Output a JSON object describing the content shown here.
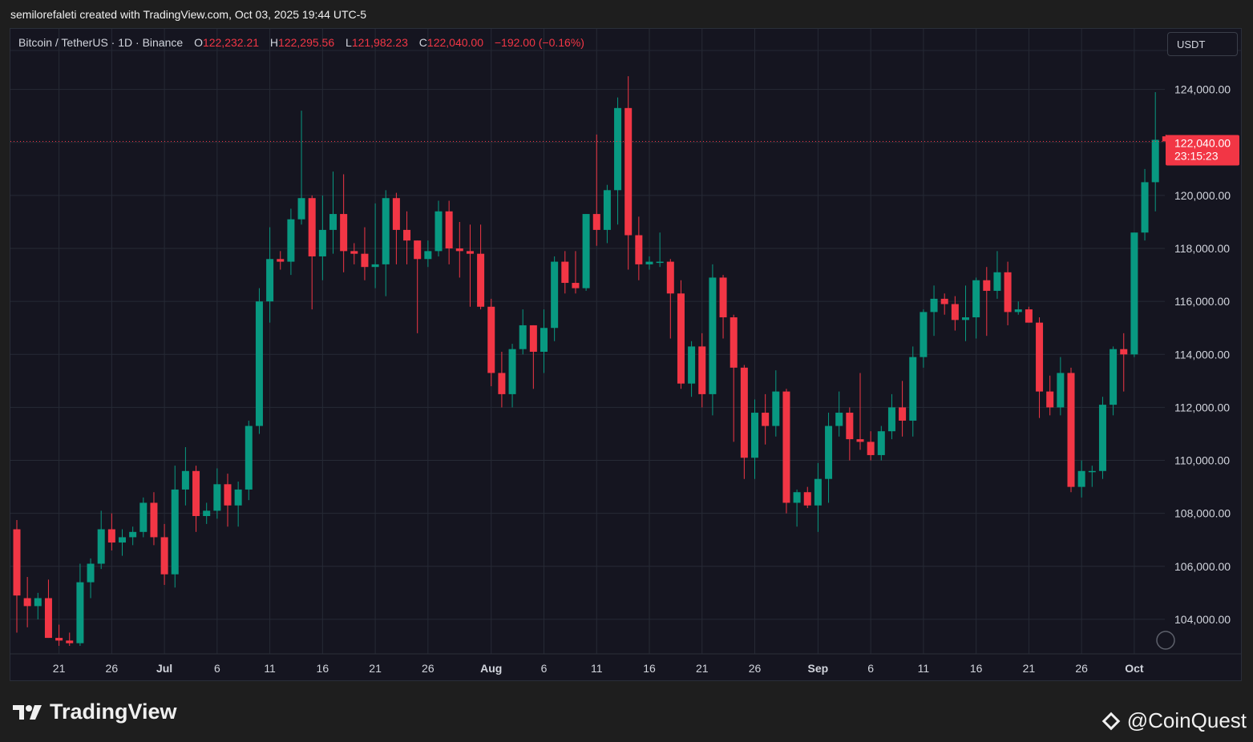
{
  "header": {
    "credit": "semilorefaleti created with TradingView.com, Oct 03, 2025 19:44 UTC-5"
  },
  "legend": {
    "symbol": "Bitcoin / TetherUS · 1D · Binance",
    "open_label": "O",
    "open": "122,232.21",
    "high_label": "H",
    "high": "122,295.56",
    "low_label": "L",
    "low": "121,982.23",
    "close_label": "C",
    "close": "122,040.00",
    "change": "−192.00 (−0.16%)"
  },
  "currency_button": "USDT",
  "price_tag": {
    "price": "122,040.00",
    "countdown": "23:15:23",
    "value": 122040
  },
  "footer": {
    "brand": "TradingView",
    "watermark": "@CoinQuest"
  },
  "colors": {
    "up": "#089981",
    "down": "#f23645",
    "background": "#151520",
    "grid": "#262a35"
  },
  "chart_data": {
    "type": "candlestick",
    "ylim": [
      103000,
      125200
    ],
    "y_ticks": [
      104000,
      106000,
      108000,
      110000,
      112000,
      114000,
      116000,
      118000,
      120000,
      122000,
      124000
    ],
    "y_tick_labels": [
      "104,000.00",
      "106,000.00",
      "108,000.00",
      "110,000.00",
      "112,000.00",
      "114,000.00",
      "116,000.00",
      "118,000.00",
      "120,000.00",
      "",
      "124,000.00"
    ],
    "x_tick_labels": [
      "21",
      "26",
      "Jul",
      "6",
      "11",
      "16",
      "21",
      "26",
      "Aug",
      "6",
      "11",
      "16",
      "21",
      "26",
      "Sep",
      "6",
      "11",
      "16",
      "21",
      "26",
      "Oct"
    ],
    "x_tick_dates": [
      "2025-06-21",
      "2025-06-26",
      "2025-07-01",
      "2025-07-06",
      "2025-07-11",
      "2025-07-16",
      "2025-07-21",
      "2025-07-26",
      "2025-08-01",
      "2025-08-06",
      "2025-08-11",
      "2025-08-16",
      "2025-08-21",
      "2025-08-26",
      "2025-09-01",
      "2025-09-06",
      "2025-09-11",
      "2025-09-16",
      "2025-09-21",
      "2025-09-26",
      "2025-10-01"
    ],
    "x_tick_bold": [
      "Jul",
      "Aug",
      "Sep",
      "Oct"
    ],
    "start_date": "2025-06-17",
    "candles": [
      {
        "date": "2025-06-17",
        "o": 107400,
        "h": 107750,
        "l": 103500,
        "c": 104900
      },
      {
        "date": "2025-06-18",
        "o": 104800,
        "h": 105600,
        "l": 103700,
        "c": 104500
      },
      {
        "date": "2025-06-19",
        "o": 104500,
        "h": 105000,
        "l": 104000,
        "c": 104800
      },
      {
        "date": "2025-06-20",
        "o": 104800,
        "h": 105500,
        "l": 103300,
        "c": 103300
      },
      {
        "date": "2025-06-21",
        "o": 103300,
        "h": 103800,
        "l": 103000,
        "c": 103200
      },
      {
        "date": "2025-06-22",
        "o": 103200,
        "h": 103500,
        "l": 103000,
        "c": 103100
      },
      {
        "date": "2025-06-23",
        "o": 103100,
        "h": 106100,
        "l": 103000,
        "c": 105400
      },
      {
        "date": "2025-06-24",
        "o": 105400,
        "h": 106300,
        "l": 104800,
        "c": 106100
      },
      {
        "date": "2025-06-25",
        "o": 106100,
        "h": 108100,
        "l": 105900,
        "c": 107400
      },
      {
        "date": "2025-06-26",
        "o": 107400,
        "h": 108000,
        "l": 106600,
        "c": 106900
      },
      {
        "date": "2025-06-27",
        "o": 106900,
        "h": 107400,
        "l": 106400,
        "c": 107100
      },
      {
        "date": "2025-06-28",
        "o": 107100,
        "h": 107500,
        "l": 106800,
        "c": 107300
      },
      {
        "date": "2025-06-29",
        "o": 107300,
        "h": 108600,
        "l": 107100,
        "c": 108400
      },
      {
        "date": "2025-06-30",
        "o": 108400,
        "h": 108800,
        "l": 106800,
        "c": 107100
      },
      {
        "date": "2025-07-01",
        "o": 107100,
        "h": 107600,
        "l": 105300,
        "c": 105700
      },
      {
        "date": "2025-07-02",
        "o": 105700,
        "h": 109800,
        "l": 105200,
        "c": 108900
      },
      {
        "date": "2025-07-03",
        "o": 108900,
        "h": 110500,
        "l": 108300,
        "c": 109600
      },
      {
        "date": "2025-07-04",
        "o": 109600,
        "h": 109800,
        "l": 107300,
        "c": 107900
      },
      {
        "date": "2025-07-05",
        "o": 107900,
        "h": 108400,
        "l": 107600,
        "c": 108100
      },
      {
        "date": "2025-07-06",
        "o": 108100,
        "h": 109700,
        "l": 107800,
        "c": 109100
      },
      {
        "date": "2025-07-07",
        "o": 109100,
        "h": 109500,
        "l": 107500,
        "c": 108300
      },
      {
        "date": "2025-07-08",
        "o": 108300,
        "h": 109200,
        "l": 107500,
        "c": 108900
      },
      {
        "date": "2025-07-09",
        "o": 108900,
        "h": 111500,
        "l": 108500,
        "c": 111300
      },
      {
        "date": "2025-07-10",
        "o": 111300,
        "h": 116500,
        "l": 111000,
        "c": 116000
      },
      {
        "date": "2025-07-11",
        "o": 116000,
        "h": 118800,
        "l": 115200,
        "c": 117600
      },
      {
        "date": "2025-07-12",
        "o": 117600,
        "h": 117900,
        "l": 117200,
        "c": 117500
      },
      {
        "date": "2025-07-13",
        "o": 117500,
        "h": 119500,
        "l": 117000,
        "c": 119100
      },
      {
        "date": "2025-07-14",
        "o": 119100,
        "h": 123200,
        "l": 118900,
        "c": 119900
      },
      {
        "date": "2025-07-15",
        "o": 119900,
        "h": 120000,
        "l": 115700,
        "c": 117700
      },
      {
        "date": "2025-07-16",
        "o": 117700,
        "h": 120000,
        "l": 116800,
        "c": 118700
      },
      {
        "date": "2025-07-17",
        "o": 118700,
        "h": 120900,
        "l": 117800,
        "c": 119300
      },
      {
        "date": "2025-07-18",
        "o": 119300,
        "h": 120800,
        "l": 117100,
        "c": 117900
      },
      {
        "date": "2025-07-19",
        "o": 117900,
        "h": 118200,
        "l": 117400,
        "c": 117800
      },
      {
        "date": "2025-07-20",
        "o": 117800,
        "h": 118800,
        "l": 116800,
        "c": 117300
      },
      {
        "date": "2025-07-21",
        "o": 117300,
        "h": 119700,
        "l": 116500,
        "c": 117400
      },
      {
        "date": "2025-07-22",
        "o": 117400,
        "h": 120200,
        "l": 116200,
        "c": 119900
      },
      {
        "date": "2025-07-23",
        "o": 119900,
        "h": 120100,
        "l": 117400,
        "c": 118700
      },
      {
        "date": "2025-07-24",
        "o": 118700,
        "h": 119400,
        "l": 117400,
        "c": 118300
      },
      {
        "date": "2025-07-25",
        "o": 118300,
        "h": 118300,
        "l": 114800,
        "c": 117600
      },
      {
        "date": "2025-07-26",
        "o": 117600,
        "h": 118300,
        "l": 117300,
        "c": 117900
      },
      {
        "date": "2025-07-27",
        "o": 117900,
        "h": 119800,
        "l": 117700,
        "c": 119400
      },
      {
        "date": "2025-07-28",
        "o": 119400,
        "h": 119800,
        "l": 117400,
        "c": 118000
      },
      {
        "date": "2025-07-29",
        "o": 118000,
        "h": 119000,
        "l": 116900,
        "c": 117900
      },
      {
        "date": "2025-07-30",
        "o": 117900,
        "h": 118900,
        "l": 115800,
        "c": 117800
      },
      {
        "date": "2025-07-31",
        "o": 117800,
        "h": 118900,
        "l": 115700,
        "c": 115800
      },
      {
        "date": "2025-08-01",
        "o": 115800,
        "h": 116100,
        "l": 112800,
        "c": 113300
      },
      {
        "date": "2025-08-02",
        "o": 113300,
        "h": 114100,
        "l": 112000,
        "c": 112500
      },
      {
        "date": "2025-08-03",
        "o": 112500,
        "h": 114400,
        "l": 112000,
        "c": 114200
      },
      {
        "date": "2025-08-04",
        "o": 114200,
        "h": 115700,
        "l": 114000,
        "c": 115100
      },
      {
        "date": "2025-08-05",
        "o": 115100,
        "h": 115100,
        "l": 112700,
        "c": 114100
      },
      {
        "date": "2025-08-06",
        "o": 114100,
        "h": 115700,
        "l": 113300,
        "c": 115000
      },
      {
        "date": "2025-08-07",
        "o": 115000,
        "h": 117700,
        "l": 114500,
        "c": 117500
      },
      {
        "date": "2025-08-08",
        "o": 117500,
        "h": 117900,
        "l": 116300,
        "c": 116700
      },
      {
        "date": "2025-08-09",
        "o": 116700,
        "h": 117900,
        "l": 116300,
        "c": 116500
      },
      {
        "date": "2025-08-10",
        "o": 116500,
        "h": 119300,
        "l": 116400,
        "c": 119300
      },
      {
        "date": "2025-08-11",
        "o": 119300,
        "h": 122300,
        "l": 118100,
        "c": 118700
      },
      {
        "date": "2025-08-12",
        "o": 118700,
        "h": 120400,
        "l": 118200,
        "c": 120200
      },
      {
        "date": "2025-08-13",
        "o": 120200,
        "h": 123700,
        "l": 118900,
        "c": 123300
      },
      {
        "date": "2025-08-14",
        "o": 123300,
        "h": 124500,
        "l": 117200,
        "c": 118500
      },
      {
        "date": "2025-08-15",
        "o": 118500,
        "h": 119200,
        "l": 116800,
        "c": 117400
      },
      {
        "date": "2025-08-16",
        "o": 117400,
        "h": 117700,
        "l": 117200,
        "c": 117500
      },
      {
        "date": "2025-08-17",
        "o": 117500,
        "h": 118600,
        "l": 117300,
        "c": 117500
      },
      {
        "date": "2025-08-18",
        "o": 117500,
        "h": 117600,
        "l": 114600,
        "c": 116300
      },
      {
        "date": "2025-08-19",
        "o": 116300,
        "h": 116800,
        "l": 112700,
        "c": 112900
      },
      {
        "date": "2025-08-20",
        "o": 112900,
        "h": 114500,
        "l": 112400,
        "c": 114300
      },
      {
        "date": "2025-08-21",
        "o": 114300,
        "h": 114800,
        "l": 112000,
        "c": 112500
      },
      {
        "date": "2025-08-22",
        "o": 112500,
        "h": 117400,
        "l": 111700,
        "c": 116900
      },
      {
        "date": "2025-08-23",
        "o": 116900,
        "h": 117000,
        "l": 114600,
        "c": 115400
      },
      {
        "date": "2025-08-24",
        "o": 115400,
        "h": 115500,
        "l": 110700,
        "c": 113500
      },
      {
        "date": "2025-08-25",
        "o": 113500,
        "h": 113600,
        "l": 109300,
        "c": 110100
      },
      {
        "date": "2025-08-26",
        "o": 110100,
        "h": 112300,
        "l": 109300,
        "c": 111800
      },
      {
        "date": "2025-08-27",
        "o": 111800,
        "h": 112500,
        "l": 110600,
        "c": 111300
      },
      {
        "date": "2025-08-28",
        "o": 111300,
        "h": 113400,
        "l": 110900,
        "c": 112600
      },
      {
        "date": "2025-08-29",
        "o": 112600,
        "h": 112700,
        "l": 108000,
        "c": 108400
      },
      {
        "date": "2025-08-30",
        "o": 108400,
        "h": 108900,
        "l": 107500,
        "c": 108800
      },
      {
        "date": "2025-08-31",
        "o": 108800,
        "h": 109000,
        "l": 108200,
        "c": 108300
      },
      {
        "date": "2025-09-01",
        "o": 108300,
        "h": 109900,
        "l": 107300,
        "c": 109300
      },
      {
        "date": "2025-09-02",
        "o": 109300,
        "h": 111800,
        "l": 108400,
        "c": 111300
      },
      {
        "date": "2025-09-03",
        "o": 111300,
        "h": 112600,
        "l": 110900,
        "c": 111800
      },
      {
        "date": "2025-09-04",
        "o": 111800,
        "h": 112000,
        "l": 110000,
        "c": 110800
      },
      {
        "date": "2025-09-05",
        "o": 110800,
        "h": 113300,
        "l": 110400,
        "c": 110700
      },
      {
        "date": "2025-09-06",
        "o": 110700,
        "h": 111100,
        "l": 110000,
        "c": 110200
      },
      {
        "date": "2025-09-07",
        "o": 110200,
        "h": 111300,
        "l": 110000,
        "c": 111100
      },
      {
        "date": "2025-09-08",
        "o": 111100,
        "h": 112500,
        "l": 110800,
        "c": 112000
      },
      {
        "date": "2025-09-09",
        "o": 112000,
        "h": 113000,
        "l": 110900,
        "c": 111500
      },
      {
        "date": "2025-09-10",
        "o": 111500,
        "h": 114300,
        "l": 110900,
        "c": 113900
      },
      {
        "date": "2025-09-11",
        "o": 113900,
        "h": 115700,
        "l": 113500,
        "c": 115600
      },
      {
        "date": "2025-09-12",
        "o": 115600,
        "h": 116600,
        "l": 114700,
        "c": 116100
      },
      {
        "date": "2025-09-13",
        "o": 116100,
        "h": 116300,
        "l": 115500,
        "c": 115900
      },
      {
        "date": "2025-09-14",
        "o": 115900,
        "h": 116200,
        "l": 114900,
        "c": 115300
      },
      {
        "date": "2025-09-15",
        "o": 115300,
        "h": 116600,
        "l": 114500,
        "c": 115400
      },
      {
        "date": "2025-09-16",
        "o": 115400,
        "h": 116900,
        "l": 114600,
        "c": 116800
      },
      {
        "date": "2025-09-17",
        "o": 116800,
        "h": 117300,
        "l": 114700,
        "c": 116400
      },
      {
        "date": "2025-09-18",
        "o": 116400,
        "h": 117900,
        "l": 116100,
        "c": 117100
      },
      {
        "date": "2025-09-19",
        "o": 117100,
        "h": 117500,
        "l": 115100,
        "c": 115600
      },
      {
        "date": "2025-09-20",
        "o": 115600,
        "h": 116000,
        "l": 115500,
        "c": 115700
      },
      {
        "date": "2025-09-21",
        "o": 115700,
        "h": 115800,
        "l": 115200,
        "c": 115200
      },
      {
        "date": "2025-09-22",
        "o": 115200,
        "h": 115400,
        "l": 111600,
        "c": 112600
      },
      {
        "date": "2025-09-23",
        "o": 112600,
        "h": 113200,
        "l": 111700,
        "c": 112000
      },
      {
        "date": "2025-09-24",
        "o": 112000,
        "h": 113900,
        "l": 111700,
        "c": 113300
      },
      {
        "date": "2025-09-25",
        "o": 113300,
        "h": 113500,
        "l": 108800,
        "c": 109000
      },
      {
        "date": "2025-09-26",
        "o": 109000,
        "h": 110000,
        "l": 108600,
        "c": 109600
      },
      {
        "date": "2025-09-27",
        "o": 109600,
        "h": 109800,
        "l": 109000,
        "c": 109600
      },
      {
        "date": "2025-09-28",
        "o": 109600,
        "h": 112400,
        "l": 109300,
        "c": 112100
      },
      {
        "date": "2025-09-29",
        "o": 112100,
        "h": 114300,
        "l": 111700,
        "c": 114200
      },
      {
        "date": "2025-09-30",
        "o": 114200,
        "h": 114800,
        "l": 112600,
        "c": 114000
      },
      {
        "date": "2025-10-01",
        "o": 114000,
        "h": 118600,
        "l": 113900,
        "c": 118600
      },
      {
        "date": "2025-10-02",
        "o": 118600,
        "h": 121000,
        "l": 118300,
        "c": 120500
      },
      {
        "date": "2025-10-03",
        "o": 120500,
        "h": 123900,
        "l": 119400,
        "c": 122100
      },
      {
        "date": "2025-10-04",
        "o": 122232,
        "h": 122296,
        "l": 121982,
        "c": 122040
      }
    ]
  }
}
